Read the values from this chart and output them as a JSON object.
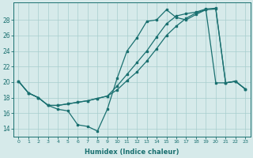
{
  "xlabel": "Humidex (Indice chaleur)",
  "bg_color": "#d6eaea",
  "line_color": "#1a7070",
  "grid_color": "#a8cece",
  "x_ticks": [
    0,
    1,
    2,
    3,
    4,
    5,
    6,
    7,
    8,
    9,
    10,
    11,
    12,
    13,
    14,
    15,
    16,
    17,
    18,
    19,
    20,
    21,
    22,
    23
  ],
  "y_ticks": [
    14,
    16,
    18,
    20,
    22,
    24,
    26,
    28
  ],
  "ylim": [
    13.0,
    30.2
  ],
  "xlim": [
    -0.5,
    23.5
  ],
  "series1_x": [
    0,
    1,
    2,
    3,
    4,
    5,
    6,
    7,
    8,
    9,
    10,
    11,
    12,
    13,
    14,
    15,
    16,
    17,
    18,
    19,
    20,
    21,
    22,
    23
  ],
  "series1_y": [
    20.1,
    18.6,
    18.0,
    17.0,
    16.5,
    16.3,
    14.5,
    14.3,
    13.7,
    16.5,
    20.5,
    24.0,
    25.7,
    27.8,
    28.0,
    29.3,
    28.3,
    28.0,
    28.7,
    29.3,
    19.9,
    19.9,
    20.1,
    19.1
  ],
  "series2_x": [
    0,
    1,
    2,
    3,
    4,
    5,
    6,
    7,
    8,
    9,
    10,
    11,
    12,
    13,
    14,
    15,
    16,
    17,
    18,
    19,
    20,
    21,
    22,
    23
  ],
  "series2_y": [
    20.1,
    18.6,
    18.0,
    17.0,
    17.0,
    17.2,
    17.4,
    17.6,
    17.9,
    18.2,
    19.0,
    20.2,
    21.3,
    22.7,
    24.3,
    26.0,
    27.2,
    28.2,
    28.9,
    29.3,
    29.4,
    19.9,
    20.1,
    19.1
  ],
  "series3_x": [
    0,
    1,
    2,
    3,
    4,
    5,
    6,
    7,
    8,
    9,
    10,
    11,
    12,
    13,
    14,
    15,
    16,
    17,
    18,
    19,
    20,
    21,
    22,
    23
  ],
  "series3_y": [
    20.1,
    18.6,
    18.0,
    17.0,
    17.0,
    17.2,
    17.4,
    17.6,
    17.9,
    18.2,
    19.5,
    21.0,
    22.5,
    24.0,
    25.8,
    27.5,
    28.5,
    28.8,
    29.0,
    29.4,
    29.5,
    19.9,
    20.1,
    19.1
  ]
}
